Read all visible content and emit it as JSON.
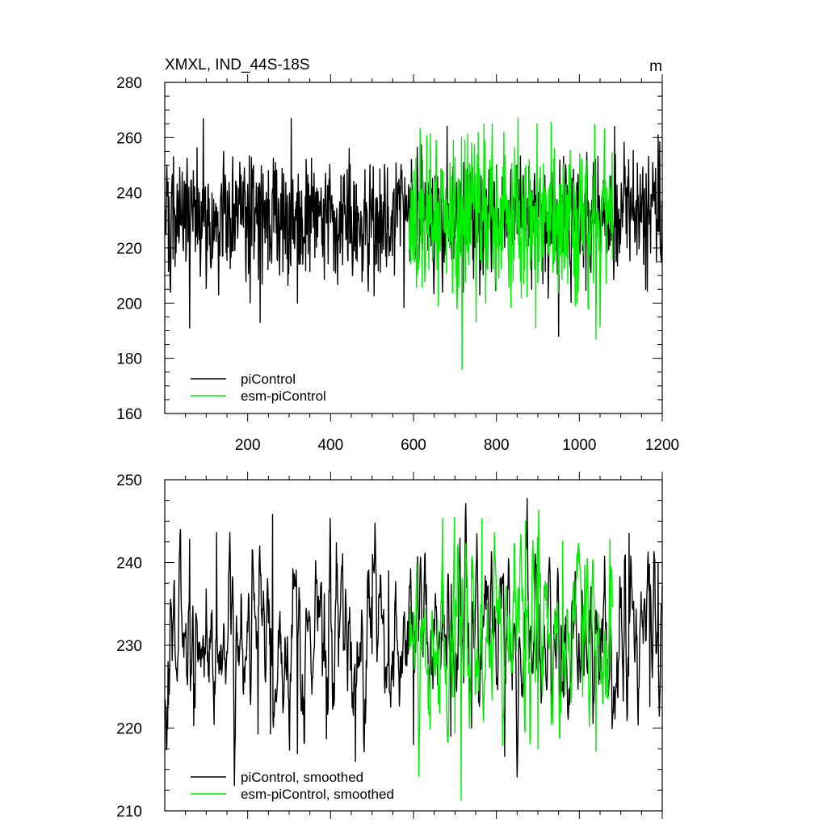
{
  "chart_data": [
    {
      "type": "line",
      "title": "XMXL, IND_44S-18S",
      "units": "m",
      "xlim": [
        0,
        1200
      ],
      "ylim": [
        160,
        280
      ],
      "xticks": [
        200,
        400,
        600,
        800,
        1000,
        1200
      ],
      "yticks": [
        160,
        180,
        200,
        220,
        240,
        260,
        280
      ],
      "legend_position": "bottom-left",
      "series": [
        {
          "name": "piControl",
          "color": "#000000",
          "x_range": [
            1,
            1200
          ],
          "mean": 232,
          "anchors": [
            [
              20,
              216
            ],
            [
              60,
              191
            ],
            [
              130,
              203
            ],
            [
              230,
              193
            ],
            [
              305,
              267
            ],
            [
              320,
              200
            ],
            [
              490,
              210
            ],
            [
              720,
              204
            ],
            [
              760,
              203
            ],
            [
              800,
              250
            ],
            [
              885,
              205
            ],
            [
              950,
              188
            ],
            [
              1010,
              213
            ],
            [
              1040,
              200
            ],
            [
              1085,
              264
            ],
            [
              1160,
              205
            ],
            [
              1190,
              261
            ]
          ]
        },
        {
          "name": "esm-piControl",
          "color": "#00ee00",
          "x_range": [
            590,
            1080
          ],
          "mean": 231,
          "anchors": [
            [
              610,
              212
            ],
            [
              660,
              199
            ],
            [
              705,
              198
            ],
            [
              717,
              176
            ],
            [
              740,
              258
            ],
            [
              770,
              265
            ],
            [
              790,
              265
            ],
            [
              860,
              202
            ],
            [
              895,
              191
            ],
            [
              898,
              265
            ],
            [
              940,
              256
            ],
            [
              990,
              199
            ],
            [
              1040,
              187
            ],
            [
              1060,
              254
            ]
          ]
        }
      ]
    },
    {
      "type": "line",
      "title": "",
      "xlim": [
        0,
        1200
      ],
      "ylim": [
        210,
        250
      ],
      "yticks": [
        210,
        220,
        230,
        240,
        250
      ],
      "legend_position": "bottom-left",
      "series": [
        {
          "name": "piControl, smoothed",
          "color": "#000000",
          "x_range": [
            1,
            1200
          ],
          "mean": 231,
          "anchors": [
            [
              8,
              228
            ],
            [
              60,
              242.8
            ],
            [
              70,
              220.3
            ],
            [
              125,
              243.6
            ],
            [
              225,
              219.3
            ],
            [
              255,
              219.3
            ],
            [
              260,
              245.8
            ],
            [
              320,
              216.9
            ],
            [
              390,
              218.7
            ],
            [
              460,
              216
            ],
            [
              500,
              229
            ],
            [
              540,
              239
            ],
            [
              600,
              218
            ],
            [
              690,
              219
            ],
            [
              740,
              220
            ],
            [
              820,
              216.6
            ],
            [
              850,
              214.1
            ],
            [
              1050,
              232
            ],
            [
              1090,
              225
            ],
            [
              1120,
              243.5
            ],
            [
              1170,
              222.6
            ],
            [
              1190,
              240
            ]
          ]
        },
        {
          "name": "esm-piControl, smoothed",
          "color": "#00ee00",
          "x_range": [
            590,
            1080
          ],
          "mean": 231,
          "anchors": [
            [
              600,
              234
            ],
            [
              670,
              245.3
            ],
            [
              700,
              219.4
            ],
            [
              715,
              211.3
            ],
            [
              735,
              220
            ],
            [
              765,
              245.3
            ],
            [
              820,
              226
            ],
            [
              870,
              245
            ],
            [
              900,
              217.5
            ],
            [
              960,
              242.6
            ],
            [
              1020,
              240
            ],
            [
              1040,
              217.2
            ],
            [
              1075,
              227
            ]
          ]
        }
      ]
    }
  ]
}
